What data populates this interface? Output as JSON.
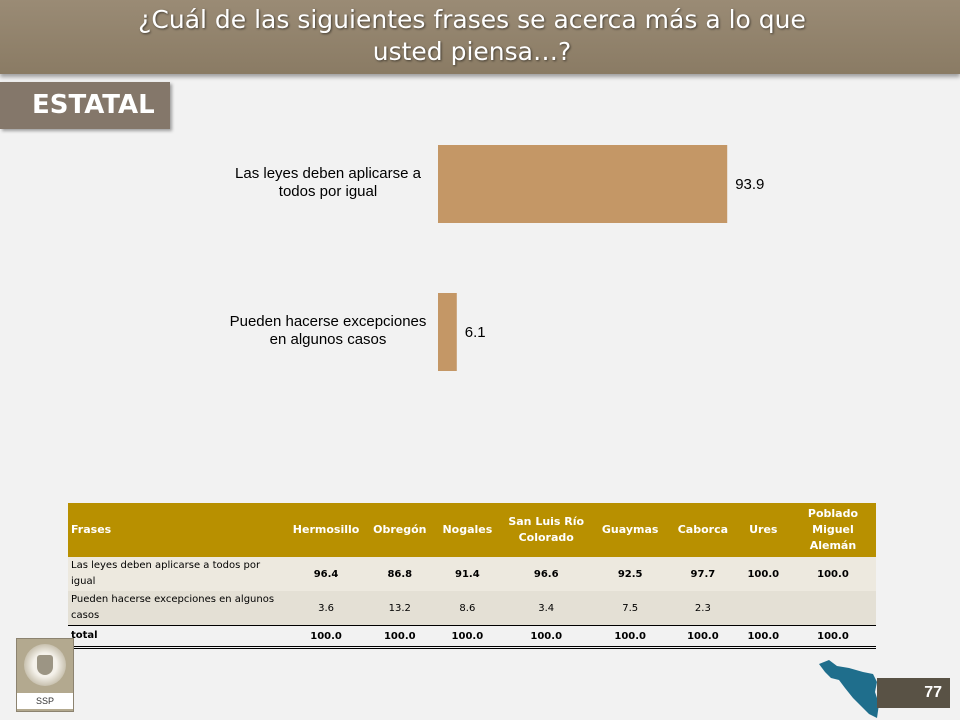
{
  "header": {
    "title_line1": "¿Cuál de las siguientes frases se acerca más a lo que",
    "title_line2": "usted piensa…?",
    "section": "ESTATAL"
  },
  "chart_data": {
    "type": "bar",
    "orientation": "horizontal",
    "categories": [
      [
        "Las leyes deben aplicarse a",
        "todos por igual"
      ],
      [
        "Pueden hacerse excepciones",
        "en algunos casos"
      ]
    ],
    "values": [
      93.9,
      6.1
    ],
    "value_labels": [
      "93.9",
      "6.1"
    ],
    "bar_color": "#c49766",
    "xlim": [
      0,
      100
    ],
    "grid": false
  },
  "table": {
    "headers": [
      "Frases",
      "Hermosillo",
      "Obregón",
      "Nogales",
      "San Luis Río Colorado",
      "Guaymas",
      "Caborca",
      "Ures",
      "Poblado Miguel Alemán"
    ],
    "rows": [
      {
        "label": "Las leyes deben aplicarse a todos por igual",
        "cells": [
          "96.4",
          "86.8",
          "91.4",
          "96.6",
          "92.5",
          "97.7",
          "100.0",
          "100.0"
        ]
      },
      {
        "label": "Pueden hacerse excepciones en algunos casos",
        "cells": [
          "3.6",
          "13.2",
          "8.6",
          "3.4",
          "7.5",
          "2.3",
          "",
          ""
        ]
      }
    ],
    "total": {
      "label": "total",
      "cells": [
        "100.0",
        "100.0",
        "100.0",
        "100.0",
        "100.0",
        "100.0",
        "100.0",
        "100.0"
      ]
    },
    "header_color": "#b89000"
  },
  "footer": {
    "logo_text": "SSP",
    "page_number": "77",
    "map_color": "#1f6e8c"
  }
}
